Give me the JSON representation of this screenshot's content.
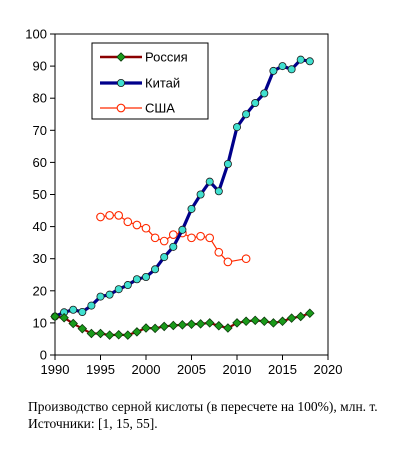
{
  "caption": "Производство серной кислоты (в пересчете на 100%), млн. т. Источники: [1, 15, 55].",
  "chart_data": {
    "type": "line",
    "title": "",
    "xlabel": "",
    "ylabel": "",
    "xlim": [
      1990,
      2020
    ],
    "ylim": [
      0,
      100
    ],
    "xticks": [
      1990,
      1995,
      2000,
      2005,
      2010,
      2015,
      2020
    ],
    "yticks": [
      0,
      10,
      20,
      30,
      40,
      50,
      60,
      70,
      80,
      90,
      100
    ],
    "grid": false,
    "legend_position": "top-left",
    "series": [
      {
        "name": "Россия",
        "color": "#1a9a1a",
        "line_color": "#8b0000",
        "marker": "diamond",
        "x": [
          1990,
          1991,
          1992,
          1993,
          1994,
          1995,
          1996,
          1997,
          1998,
          1999,
          2000,
          2001,
          2002,
          2003,
          2004,
          2005,
          2006,
          2007,
          2008,
          2009,
          2010,
          2011,
          2012,
          2013,
          2014,
          2015,
          2016,
          2017,
          2018
        ],
        "y": [
          12.0,
          11.6,
          9.8,
          8.2,
          6.7,
          6.7,
          6.2,
          6.3,
          6.2,
          7.2,
          8.4,
          8.3,
          8.9,
          9.2,
          9.4,
          9.6,
          9.7,
          10.0,
          9.1,
          8.4,
          10.0,
          10.5,
          10.8,
          10.5,
          10.0,
          10.5,
          11.5,
          12.0,
          13.0
        ]
      },
      {
        "name": "Китай",
        "color": "#00008b",
        "marker_color": "#40e0d0",
        "marker": "circle",
        "x": [
          1990,
          1991,
          1992,
          1993,
          1994,
          1995,
          1996,
          1997,
          1998,
          1999,
          2000,
          2001,
          2002,
          2003,
          2004,
          2005,
          2006,
          2007,
          2008,
          2009,
          2010,
          2011,
          2012,
          2013,
          2014,
          2015,
          2016,
          2017,
          2018
        ],
        "y": [
          12.0,
          13.3,
          14.1,
          13.4,
          15.4,
          18.2,
          18.8,
          20.5,
          21.8,
          23.6,
          24.3,
          26.7,
          30.5,
          33.7,
          39.0,
          45.5,
          50.0,
          54.0,
          51.0,
          59.5,
          71.0,
          75.0,
          78.5,
          81.5,
          88.5,
          90.0,
          89.0,
          92.0,
          91.5
        ]
      },
      {
        "name": "США",
        "color": "#ff2a00",
        "marker": "circle-open",
        "x": [
          1995,
          1996,
          1997,
          1998,
          1999,
          2000,
          2001,
          2002,
          2003,
          2004,
          2005,
          2006,
          2007,
          2008,
          2009,
          2011
        ],
        "y": [
          43.0,
          43.5,
          43.5,
          41.5,
          40.5,
          39.5,
          36.5,
          35.5,
          37.5,
          38.0,
          36.5,
          37.0,
          36.5,
          32.0,
          29.0,
          30.0
        ]
      }
    ]
  }
}
